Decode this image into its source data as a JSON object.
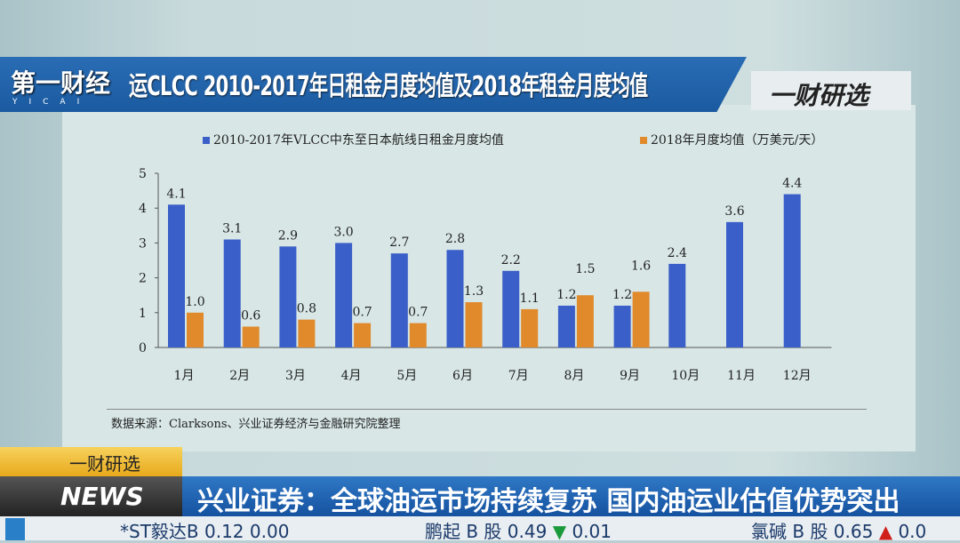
{
  "broadcast": {
    "channel_logo": "第一财经",
    "channel_logo_sub": "YICAI",
    "program_logo": "一财研选",
    "section_tag": "一财研选",
    "news_logo": "NEWS",
    "headline": "兴业证券：全球油运市场持续复苏 国内油运业估值优势突出",
    "ticker": [
      {
        "name": "*ST毅达B",
        "price": "0.12",
        "change": "0.00",
        "direction": "flat"
      },
      {
        "name": "鹏起 B 股",
        "price": "0.49",
        "change": "0.01",
        "direction": "down"
      },
      {
        "name": "氯碱 B 股",
        "price": "0.65",
        "change": "0.0",
        "direction": "up"
      }
    ]
  },
  "chart_data": {
    "type": "bar",
    "title": "运CLCC 2010-2017年日租金月度均值及2018年租金月度均值",
    "categories": [
      "1月",
      "2月",
      "3月",
      "4月",
      "5月",
      "6月",
      "7月",
      "8月",
      "9月",
      "10月",
      "11月",
      "12月"
    ],
    "series": [
      {
        "name": "2010-2017年VLCC中东至日本航线日租金月度均值",
        "color": "#3a5fc8",
        "values": [
          4.1,
          3.1,
          2.9,
          3.0,
          2.7,
          2.8,
          2.2,
          1.2,
          1.2,
          2.4,
          3.6,
          4.4
        ]
      },
      {
        "name": "2018年月度均值（万美元/天）",
        "color": "#e08a2c",
        "values": [
          1.0,
          0.6,
          0.8,
          0.7,
          0.7,
          1.3,
          1.1,
          1.5,
          1.6,
          null,
          null,
          null
        ]
      }
    ],
    "yticks": [
      "0",
      "1",
      "2",
      "3",
      "4",
      "5"
    ],
    "ylim": [
      0,
      5
    ],
    "grid": false,
    "legend": "top",
    "source": "数据来源：Clarksons、兴业证券经济与金融研究院整理"
  }
}
